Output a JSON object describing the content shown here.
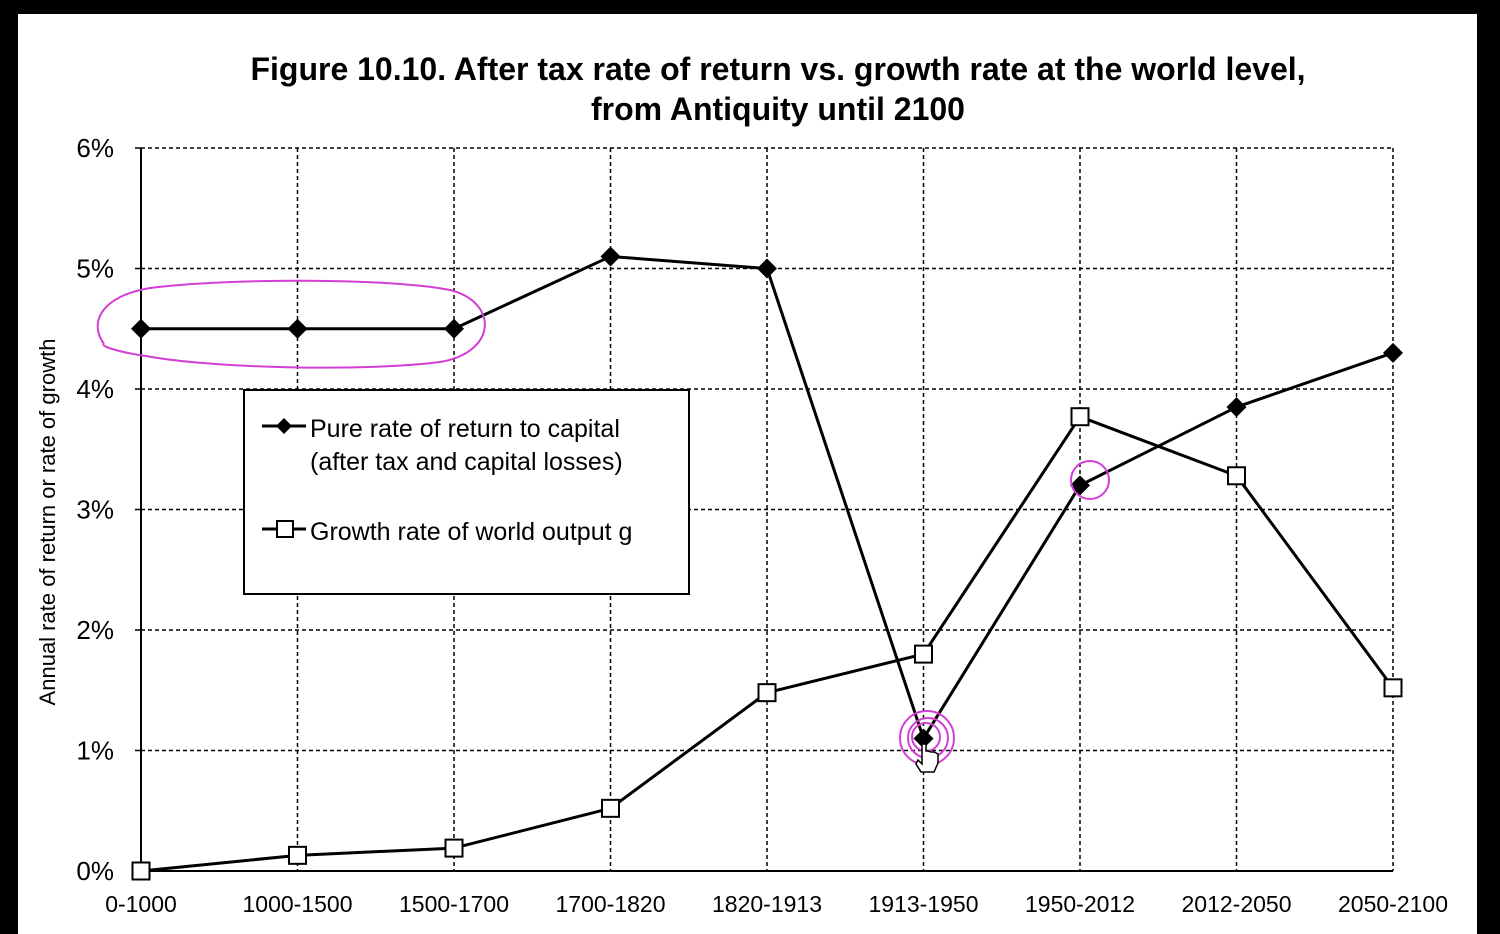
{
  "chart_data": {
    "type": "line",
    "title_line1": "Figure 10.10. After tax rate of return vs. growth rate at the world level,",
    "title_line2": "from Antiquity until 2100",
    "xlabel": "",
    "ylabel": "Annual rate of return or rate of growth",
    "ylim": [
      0,
      6
    ],
    "yticks": [
      "0%",
      "1%",
      "2%",
      "3%",
      "4%",
      "5%",
      "6%"
    ],
    "categories": [
      "0-1000",
      "1000-1500",
      "1500-1700",
      "1700-1820",
      "1820-1913",
      "1913-1950",
      "1950-2012",
      "2012-2050",
      "2050-2100"
    ],
    "grid": true,
    "legend_position": "upper-left",
    "series": [
      {
        "name": "Pure rate of return to capital",
        "name_line2": "(after tax and capital losses)",
        "marker": "filled-diamond",
        "color": "#000000",
        "values": [
          4.5,
          4.5,
          4.5,
          5.1,
          5.0,
          1.1,
          3.2,
          3.85,
          4.3
        ]
      },
      {
        "name": "Growth rate of world output g",
        "marker": "open-square",
        "color": "#000000",
        "values": [
          0.0,
          0.13,
          0.19,
          0.52,
          1.48,
          1.8,
          3.77,
          3.28,
          1.52
        ]
      }
    ],
    "annotation_color": "#d23fd2"
  }
}
